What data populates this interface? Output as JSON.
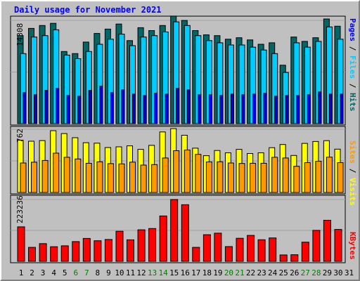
{
  "title": "Daily usage for November 2021",
  "chart_data": [
    {
      "type": "bar",
      "panel": "top",
      "max_label": "14308",
      "ylim": [
        0,
        14308
      ],
      "categories": [
        "1",
        "2",
        "3",
        "4",
        "5",
        "6",
        "7",
        "8",
        "9",
        "10",
        "11",
        "12",
        "13",
        "14",
        "15",
        "16",
        "17",
        "18",
        "19",
        "20",
        "21",
        "22",
        "23",
        "24",
        "25",
        "26",
        "27",
        "28",
        "29",
        "30",
        "31"
      ],
      "series": [
        {
          "name": "Hits",
          "color": "#006666",
          "values": [
            12200,
            13200,
            13600,
            13900,
            10000,
            9700,
            11300,
            12500,
            13100,
            13800,
            11500,
            13300,
            12900,
            13600,
            14900,
            14300,
            12900,
            12300,
            12200,
            11700,
            11900,
            11600,
            11000,
            11200,
            8100,
            12000,
            11400,
            11900,
            14500,
            13500,
            0
          ]
        },
        {
          "name": "Files",
          "color": "#00ccff",
          "values": [
            9700,
            12000,
            12200,
            13000,
            9500,
            9000,
            10000,
            11000,
            11700,
            12400,
            10800,
            12000,
            12200,
            12700,
            14100,
            13600,
            12200,
            11500,
            11200,
            10900,
            10900,
            10600,
            10200,
            9700,
            7100,
            11200,
            10600,
            11400,
            13400,
            11700,
            0
          ]
        },
        {
          "name": "Pages",
          "color": "#0000ff",
          "values": [
            4300,
            4000,
            4600,
            4900,
            3900,
            3800,
            4600,
            5200,
            4300,
            4700,
            4100,
            3900,
            4200,
            4100,
            4900,
            4700,
            4000,
            4000,
            3900,
            4100,
            4000,
            4100,
            4200,
            3800,
            3900,
            3900,
            4000,
            4400,
            4100,
            4100,
            0
          ]
        }
      ]
    },
    {
      "type": "bar",
      "panel": "middle",
      "max_label": "762",
      "ylim": [
        0,
        762
      ],
      "categories": [
        "1",
        "2",
        "3",
        "4",
        "5",
        "6",
        "7",
        "8",
        "9",
        "10",
        "11",
        "12",
        "13",
        "14",
        "15",
        "16",
        "17",
        "18",
        "19",
        "20",
        "21",
        "22",
        "23",
        "24",
        "25",
        "26",
        "27",
        "28",
        "29",
        "30",
        "31"
      ],
      "series": [
        {
          "name": "Visits",
          "color": "#ffff00",
          "values": [
            630,
            618,
            626,
            745,
            710,
            660,
            600,
            594,
            542,
            550,
            562,
            520,
            568,
            730,
            770,
            690,
            534,
            444,
            506,
            478,
            520,
            470,
            478,
            540,
            578,
            446,
            592,
            615,
            625,
            522,
            0
          ]
        },
        {
          "name": "Sites",
          "color": "#ff9900",
          "values": [
            356,
            365,
            386,
            474,
            424,
            404,
            352,
            370,
            348,
            345,
            366,
            330,
            336,
            416,
            504,
            512,
            460,
            368,
            370,
            356,
            350,
            352,
            352,
            424,
            416,
            316,
            360,
            376,
            426,
            360,
            0
          ]
        }
      ]
    },
    {
      "type": "bar",
      "panel": "bottom",
      "max_label": "223236",
      "ylim": [
        0,
        223236
      ],
      "categories": [
        "1",
        "2",
        "3",
        "4",
        "5",
        "6",
        "7",
        "8",
        "9",
        "10",
        "11",
        "12",
        "13",
        "14",
        "15",
        "16",
        "17",
        "18",
        "19",
        "20",
        "21",
        "22",
        "23",
        "24",
        "25",
        "26",
        "27",
        "28",
        "29",
        "30",
        "31"
      ],
      "series": [
        {
          "name": "KBytes",
          "color": "#ff0000",
          "values": [
            124600,
            50500,
            64000,
            52700,
            56000,
            71200,
            82700,
            74400,
            79000,
            108500,
            77700,
            114000,
            118500,
            163800,
            223236,
            204500,
            50500,
            96100,
            101700,
            53300,
            83300,
            93700,
            78000,
            84600,
            23000,
            23800,
            69300,
            111800,
            148300,
            115200,
            0
          ]
        }
      ]
    }
  ],
  "right_labels": {
    "top": [
      {
        "text": "Pages",
        "color": "#0000ff"
      },
      {
        "text": " / ",
        "color": "#000000"
      },
      {
        "text": "Files",
        "color": "#00ccff"
      },
      {
        "text": " / ",
        "color": "#000000"
      },
      {
        "text": "Hits",
        "color": "#006666"
      }
    ],
    "middle": [
      {
        "text": "Sites",
        "color": "#ff9900"
      },
      {
        "text": " / ",
        "color": "#000000"
      },
      {
        "text": "Visits",
        "color": "#ffff00"
      }
    ],
    "bottom": [
      {
        "text": "KBytes",
        "color": "#ff0000"
      }
    ]
  },
  "days": [
    {
      "label": "1",
      "weekend": false
    },
    {
      "label": "2",
      "weekend": false
    },
    {
      "label": "3",
      "weekend": false
    },
    {
      "label": "4",
      "weekend": false
    },
    {
      "label": "5",
      "weekend": false
    },
    {
      "label": "6",
      "weekend": true
    },
    {
      "label": "7",
      "weekend": true
    },
    {
      "label": "8",
      "weekend": false
    },
    {
      "label": "9",
      "weekend": false
    },
    {
      "label": "10",
      "weekend": false
    },
    {
      "label": "11",
      "weekend": false
    },
    {
      "label": "12",
      "weekend": false
    },
    {
      "label": "13",
      "weekend": true
    },
    {
      "label": "14",
      "weekend": true
    },
    {
      "label": "15",
      "weekend": false
    },
    {
      "label": "16",
      "weekend": false
    },
    {
      "label": "17",
      "weekend": false
    },
    {
      "label": "18",
      "weekend": false
    },
    {
      "label": "19",
      "weekend": false
    },
    {
      "label": "20",
      "weekend": true
    },
    {
      "label": "21",
      "weekend": true
    },
    {
      "label": "22",
      "weekend": false
    },
    {
      "label": "23",
      "weekend": false
    },
    {
      "label": "24",
      "weekend": false
    },
    {
      "label": "25",
      "weekend": false
    },
    {
      "label": "26",
      "weekend": false
    },
    {
      "label": "27",
      "weekend": true
    },
    {
      "label": "28",
      "weekend": true
    },
    {
      "label": "29",
      "weekend": false
    },
    {
      "label": "30",
      "weekend": false
    },
    {
      "label": "31",
      "weekend": false
    }
  ],
  "colors": {
    "weekday_label": "#000000",
    "weekend_label": "#008000"
  }
}
